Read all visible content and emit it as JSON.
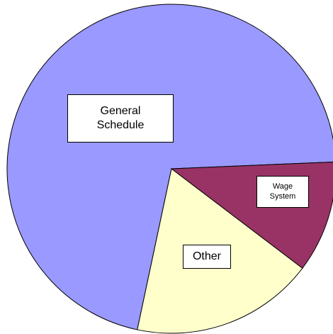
{
  "chart_data": {
    "type": "pie",
    "categories": [
      "General Schedule",
      "Wage System",
      "Other"
    ],
    "values": [
      71,
      11,
      18
    ],
    "colors": [
      "#9999ff",
      "#993366",
      "#ffffcc"
    ]
  }
}
